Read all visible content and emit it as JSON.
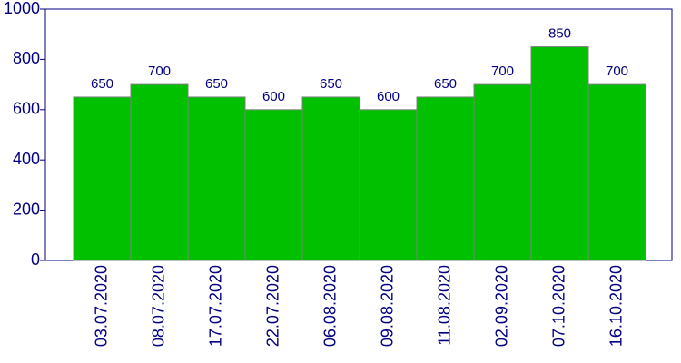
{
  "chart_data": {
    "type": "bar",
    "categories": [
      "03.07.2020",
      "08.07.2020",
      "17.07.2020",
      "22.07.2020",
      "06.08.2020",
      "09.08.2020",
      "11.08.2020",
      "02.09.2020",
      "07.10.2020",
      "16.10.2020"
    ],
    "values": [
      650,
      700,
      650,
      600,
      650,
      600,
      650,
      700,
      850,
      700
    ],
    "color": "#00c000",
    "ylim": [
      0,
      1000
    ],
    "yticks": [
      0,
      200,
      400,
      600,
      800,
      1000
    ],
    "grid": false
  }
}
